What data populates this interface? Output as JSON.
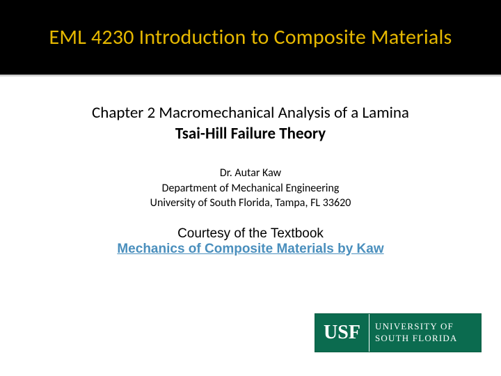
{
  "title": {
    "text": "EML 4230 Introduction to Composite Materials",
    "color": "#e6b800",
    "background": "#000000"
  },
  "chapter": "Chapter 2 Macromechanical Analysis of a Lamina",
  "subtitle": "Tsai-Hill Failure Theory",
  "author": {
    "name": "Dr. Autar Kaw",
    "dept": "Department of Mechanical Engineering",
    "univ": "University of South Florida, Tampa, FL 33620"
  },
  "courtesy": {
    "line1": "Courtesy of the Textbook",
    "link": "Mechanics of Composite Materials by Kaw",
    "link_color": "#4a8fbd"
  },
  "logo": {
    "abbrev": "USF",
    "line1": "UNIVERSITY OF",
    "line2": "SOUTH FLORIDA",
    "bg_color": "#0b6b4f",
    "text_color": "#ffffff"
  }
}
